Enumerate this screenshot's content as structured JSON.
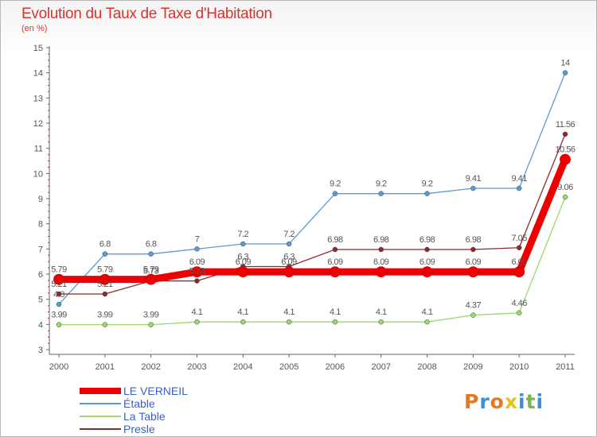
{
  "header": {
    "title": "Evolution du Taux de Taxe d'Habitation",
    "unit": "(en %)"
  },
  "logo": {
    "letters": [
      "P",
      "r",
      "o",
      "x",
      "i",
      "t",
      "i"
    ],
    "colors": [
      "#e87722",
      "#3a8fd8",
      "#e87722",
      "#e8c21a",
      "#3a8fd8",
      "#7ab648",
      "#3a8fd8"
    ]
  },
  "chart_data": {
    "type": "line",
    "title": "Evolution du Taux de Taxe d'Habitation",
    "ylabel": "(en %)",
    "ylim": [
      3,
      15
    ],
    "yticks": [
      3,
      4,
      5,
      6,
      7,
      8,
      9,
      10,
      11,
      12,
      13,
      14,
      15
    ],
    "categories": [
      "2000",
      "2001",
      "2002",
      "2003",
      "2004",
      "2005",
      "2006",
      "2007",
      "2008",
      "2009",
      "2010",
      "2011"
    ],
    "grid": false,
    "legend_position": "bottom-left",
    "series": [
      {
        "name": "Étable",
        "color": "#5a9bd5",
        "values": [
          4.8,
          6.8,
          6.8,
          7,
          7.2,
          7.2,
          9.2,
          9.2,
          9.2,
          9.41,
          9.41,
          14
        ],
        "labels": [
          "4.8",
          "6.8",
          "6.8",
          "7",
          "7.2",
          "7.2",
          "9.2",
          "9.2",
          "9.2",
          "9.41",
          "9.41",
          "14"
        ]
      },
      {
        "name": "La Table",
        "color": "#98d96a",
        "values": [
          3.99,
          3.99,
          3.99,
          4.1,
          4.1,
          4.1,
          4.1,
          4.1,
          4.1,
          4.37,
          4.46,
          9.06
        ],
        "labels": [
          "3.99",
          "3.99",
          "3.99",
          "4.1",
          "4.1",
          "4.1",
          "4.1",
          "4.1",
          "4.1",
          "4.37",
          "4.46",
          "9.06"
        ]
      },
      {
        "name": "Presle",
        "color": "#8b2a2a",
        "values": [
          5.21,
          5.21,
          5.73,
          5.73,
          6.3,
          6.3,
          6.98,
          6.98,
          6.98,
          6.98,
          7.05,
          11.56
        ],
        "labels": [
          "5.21",
          "5.21",
          "5.73",
          "5.73",
          "6.3",
          "6.3",
          "6.98",
          "6.98",
          "6.98",
          "6.98",
          "7.05",
          "11.56"
        ]
      },
      {
        "name": "LE VERNEIL",
        "color": "#ee0000",
        "values": [
          5.79,
          5.79,
          5.79,
          6.09,
          6.09,
          6.09,
          6.09,
          6.09,
          6.09,
          6.09,
          6.09,
          10.56
        ],
        "labels": [
          "5.79",
          "5.79",
          "5.79",
          "6.09",
          "6.09",
          "6.09",
          "6.09",
          "6.09",
          "6.09",
          "6.09",
          "6.09",
          "10.56"
        ]
      }
    ],
    "legend": [
      {
        "name": "LE VERNEIL",
        "color": "#ee0000",
        "width": 8
      },
      {
        "name": "Étable",
        "color": "#5a9bd5",
        "width": 2
      },
      {
        "name": "La Table",
        "color": "#98d96a",
        "width": 2
      },
      {
        "name": "Presle",
        "color": "#8b2a2a",
        "width": 2
      }
    ]
  }
}
